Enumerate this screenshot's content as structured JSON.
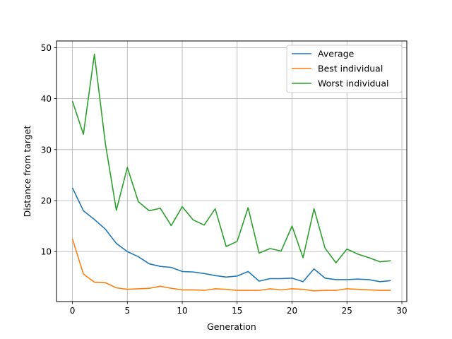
{
  "chart_data": {
    "type": "line",
    "title": "",
    "xlabel": "Generation",
    "ylabel": "Distance from target",
    "xlim": [
      -1.45,
      30.45
    ],
    "ylim": [
      0.2,
      51.3
    ],
    "xticks": [
      0,
      5,
      10,
      15,
      20,
      25,
      30
    ],
    "yticks": [
      10,
      20,
      30,
      40,
      50
    ],
    "grid": true,
    "legend_position": "top-right",
    "x": [
      0,
      1,
      2,
      3,
      4,
      5,
      6,
      7,
      8,
      9,
      10,
      11,
      12,
      13,
      14,
      15,
      16,
      17,
      18,
      19,
      20,
      21,
      22,
      23,
      24,
      25,
      26,
      27,
      28,
      29
    ],
    "series": [
      {
        "name": "Average",
        "color": "#1f77b4",
        "values": [
          22.5,
          18.0,
          16.3,
          14.4,
          11.6,
          10.0,
          9.0,
          7.6,
          7.1,
          6.9,
          6.1,
          6.0,
          5.7,
          5.3,
          5.0,
          5.2,
          6.1,
          4.2,
          4.7,
          4.7,
          4.8,
          4.1,
          6.6,
          4.8,
          4.5,
          4.5,
          4.6,
          4.5,
          4.1,
          4.3
        ]
      },
      {
        "name": "Best individual",
        "color": "#ff7f0e",
        "values": [
          12.5,
          5.6,
          4.0,
          3.9,
          2.9,
          2.6,
          2.7,
          2.8,
          3.2,
          2.8,
          2.5,
          2.5,
          2.4,
          2.7,
          2.6,
          2.4,
          2.4,
          2.4,
          2.7,
          2.5,
          2.7,
          2.6,
          2.3,
          2.4,
          2.4,
          2.7,
          2.6,
          2.5,
          2.4,
          2.4
        ]
      },
      {
        "name": "Worst individual",
        "color": "#2ca02c",
        "values": [
          39.5,
          33.0,
          48.7,
          31.2,
          18.1,
          26.5,
          19.8,
          18.0,
          18.5,
          15.1,
          18.8,
          16.2,
          15.2,
          18.4,
          11.0,
          12.0,
          18.6,
          9.7,
          10.6,
          10.1,
          15.0,
          8.8,
          18.4,
          10.7,
          7.8,
          10.5,
          9.5,
          8.8,
          8.0,
          8.2
        ]
      }
    ]
  }
}
